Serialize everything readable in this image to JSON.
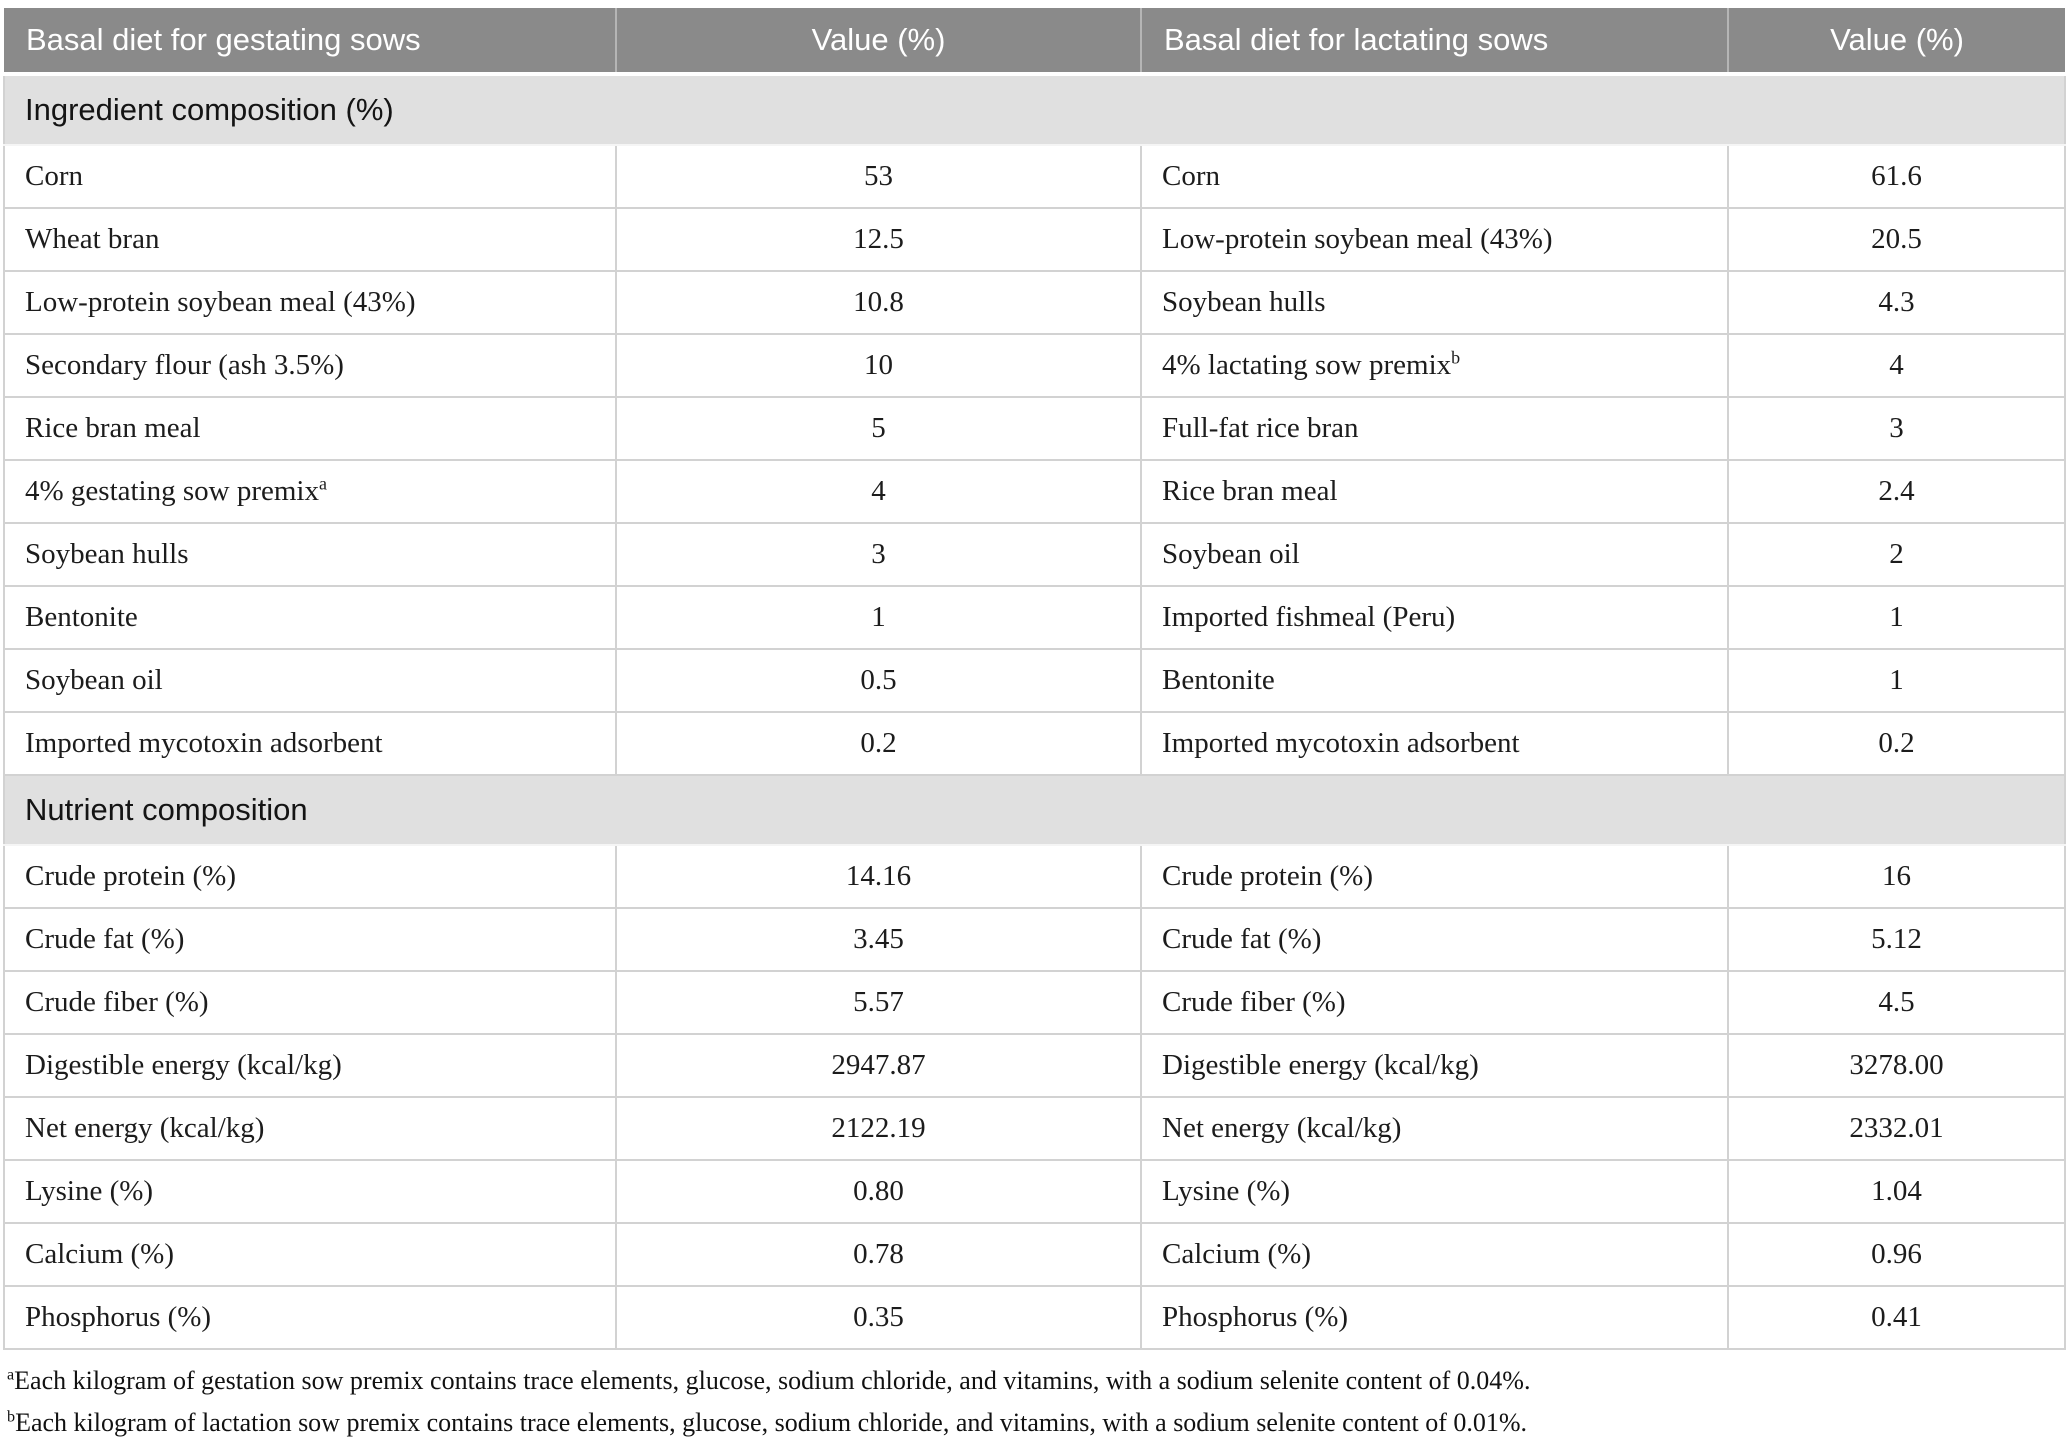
{
  "table": {
    "columns": [
      "Basal diet for gestating sows",
      "Value (%)",
      "Basal diet for lactating sows",
      "Value (%)"
    ],
    "sections": [
      {
        "title": "Ingredient composition (%)",
        "rows": [
          {
            "gestating_label": "Corn",
            "gestating_sup": "",
            "gestating_value": "53",
            "lactating_label": "Corn",
            "lactating_sup": "",
            "lactating_value": "61.6"
          },
          {
            "gestating_label": "Wheat bran",
            "gestating_sup": "",
            "gestating_value": "12.5",
            "lactating_label": "Low-protein soybean meal (43%)",
            "lactating_sup": "",
            "lactating_value": "20.5"
          },
          {
            "gestating_label": "Low-protein soybean meal (43%)",
            "gestating_sup": "",
            "gestating_value": "10.8",
            "lactating_label": "Soybean hulls",
            "lactating_sup": "",
            "lactating_value": "4.3"
          },
          {
            "gestating_label": "Secondary flour (ash 3.5%)",
            "gestating_sup": "",
            "gestating_value": "10",
            "lactating_label": "4% lactating sow premix",
            "lactating_sup": "b",
            "lactating_value": "4"
          },
          {
            "gestating_label": "Rice bran meal",
            "gestating_sup": "",
            "gestating_value": "5",
            "lactating_label": "Full-fat rice bran",
            "lactating_sup": "",
            "lactating_value": "3"
          },
          {
            "gestating_label": "4% gestating sow premix",
            "gestating_sup": "a",
            "gestating_value": "4",
            "lactating_label": "Rice bran meal",
            "lactating_sup": "",
            "lactating_value": "2.4"
          },
          {
            "gestating_label": "Soybean hulls",
            "gestating_sup": "",
            "gestating_value": "3",
            "lactating_label": "Soybean oil",
            "lactating_sup": "",
            "lactating_value": "2"
          },
          {
            "gestating_label": "Bentonite",
            "gestating_sup": "",
            "gestating_value": "1",
            "lactating_label": "Imported fishmeal (Peru)",
            "lactating_sup": "",
            "lactating_value": "1"
          },
          {
            "gestating_label": "Soybean oil",
            "gestating_sup": "",
            "gestating_value": "0.5",
            "lactating_label": "Bentonite",
            "lactating_sup": "",
            "lactating_value": "1"
          },
          {
            "gestating_label": "Imported mycotoxin adsorbent",
            "gestating_sup": "",
            "gestating_value": "0.2",
            "lactating_label": "Imported mycotoxin adsorbent",
            "lactating_sup": "",
            "lactating_value": "0.2"
          }
        ]
      },
      {
        "title": "Nutrient composition",
        "rows": [
          {
            "gestating_label": "Crude protein (%)",
            "gestating_sup": "",
            "gestating_value": "14.16",
            "lactating_label": "Crude protein (%)",
            "lactating_sup": "",
            "lactating_value": "16"
          },
          {
            "gestating_label": "Crude fat (%)",
            "gestating_sup": "",
            "gestating_value": "3.45",
            "lactating_label": "Crude fat (%)",
            "lactating_sup": "",
            "lactating_value": "5.12"
          },
          {
            "gestating_label": "Crude fiber (%)",
            "gestating_sup": "",
            "gestating_value": "5.57",
            "lactating_label": "Crude fiber (%)",
            "lactating_sup": "",
            "lactating_value": "4.5"
          },
          {
            "gestating_label": "Digestible energy (kcal/kg)",
            "gestating_sup": "",
            "gestating_value": "2947.87",
            "lactating_label": "Digestible energy (kcal/kg)",
            "lactating_sup": "",
            "lactating_value": "3278.00"
          },
          {
            "gestating_label": "Net energy (kcal/kg)",
            "gestating_sup": "",
            "gestating_value": "2122.19",
            "lactating_label": "Net energy (kcal/kg)",
            "lactating_sup": "",
            "lactating_value": "2332.01"
          },
          {
            "gestating_label": "Lysine (%)",
            "gestating_sup": "",
            "gestating_value": "0.80",
            "lactating_label": "Lysine (%)",
            "lactating_sup": "",
            "lactating_value": "1.04"
          },
          {
            "gestating_label": "Calcium (%)",
            "gestating_sup": "",
            "gestating_value": "0.78",
            "lactating_label": "Calcium (%)",
            "lactating_sup": "",
            "lactating_value": "0.96"
          },
          {
            "gestating_label": "Phosphorus (%)",
            "gestating_sup": "",
            "gestating_value": "0.35",
            "lactating_label": "Phosphorus (%)",
            "lactating_sup": "",
            "lactating_value": "0.41"
          }
        ]
      }
    ],
    "footnotes": [
      {
        "sup": "a",
        "text": "Each kilogram of gestation sow premix contains trace elements, glucose, sodium chloride, and vitamins, with a sodium selenite content of 0.04%."
      },
      {
        "sup": "b",
        "text": "Each kilogram of lactation sow premix contains trace elements, glucose, sodium chloride, and vitamins, with a sodium selenite content of 0.01%."
      }
    ],
    "colors": {
      "header_bg": "#8a8a8a",
      "header_text": "#ffffff",
      "section_bg": "#e0e0e0",
      "border": "#d2d2d2",
      "text": "#1c1c1c"
    }
  }
}
